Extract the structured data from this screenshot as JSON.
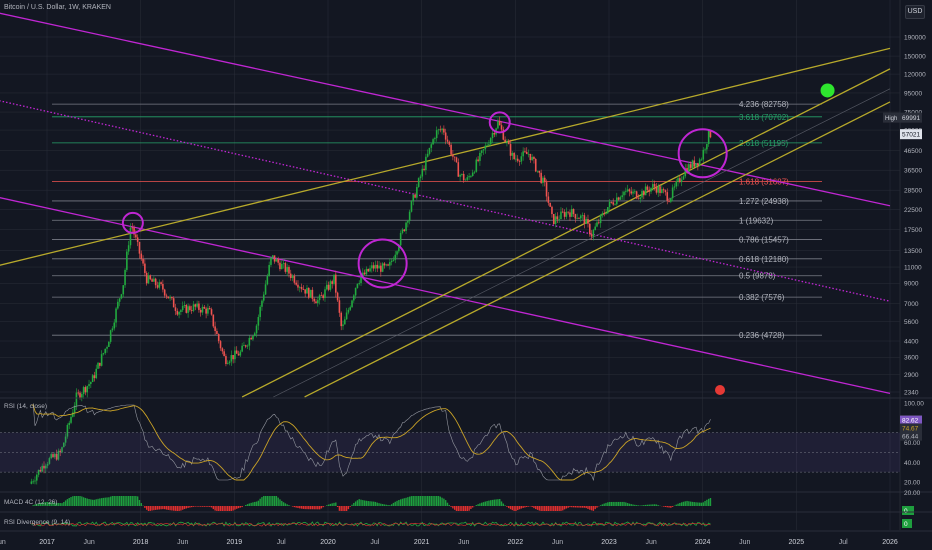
{
  "header": {
    "title": "Bitcoin / U.S. Dollar, 1W, KRAKEN",
    "currency_button": "USD"
  },
  "colors": {
    "background": "#131722",
    "grid": "#2a2e39",
    "candle_up": "#26a69a",
    "candle_up_bright": "#22ab3f",
    "candle_down": "#ef5350",
    "purple": "#c026d3",
    "olive": "#b7a92b",
    "fib_white": "#787b86",
    "fib_green": "#26a269",
    "fib_red": "#ef5350",
    "rsi_line": "#9598a1",
    "rsi_ma": "#c9a227",
    "macd_up": "#1e9e3e",
    "macd_down": "#e02f2f",
    "marker_green": "#2ee62e"
  },
  "price_axis_labels": [
    "190000",
    "150000",
    "120000",
    "95000",
    "75000",
    "60000",
    "46500",
    "36500",
    "28500",
    "22500",
    "17500",
    "13500",
    "11000",
    "9000",
    "7000",
    "5600",
    "4400",
    "3600",
    "2900",
    "2340"
  ],
  "price_badges": {
    "high_label": "High",
    "high_value": "69991",
    "last_value": "57021"
  },
  "fib_labels": [
    "4.236 (82758)",
    "3.618 (70702)",
    "2.618 (51195)",
    "1.618 (31687)",
    "1.272 (24938)",
    "1 (19632)",
    "0.786 (15457)",
    "0.618 (12180)",
    "0.5 (9878)",
    "0.382 (7576)",
    "0.236 (4728)"
  ],
  "time_axis_labels": [
    "Jun",
    "2017",
    "Jun",
    "2018",
    "Jun",
    "2019",
    "Jul",
    "2020",
    "Jul",
    "2021",
    "Jun",
    "2022",
    "Jun",
    "2023",
    "Jun",
    "2024",
    "Jun",
    "2025",
    "Jul",
    "2026"
  ],
  "rsi_panel": {
    "title": "RSI (14, close)",
    "axis_labels": [
      "100.00",
      "80.00",
      "60.00",
      "40.00",
      "20.00"
    ],
    "badge_values": [
      "83.20",
      "82.62",
      "74.67",
      "66.44"
    ]
  },
  "macd_panel": {
    "title": "MACD 4C (12, 26)",
    "badge_value": "0"
  },
  "rsi_div_panel": {
    "title": "RSI Divergence (9, 14)",
    "badge_value": "0"
  },
  "chart_data": {
    "type": "candlestick",
    "title": "Bitcoin / U.S. Dollar, 1W, KRAKEN",
    "y_scale": "log",
    "ylim": [
      2340,
      190000
    ],
    "x_range": [
      "2016-06",
      "2026-01"
    ],
    "price_path": [
      {
        "date": "2016-11",
        "price": 750
      },
      {
        "date": "2017-01",
        "price": 980
      },
      {
        "date": "2017-03",
        "price": 1100
      },
      {
        "date": "2017-05",
        "price": 2200
      },
      {
        "date": "2017-07",
        "price": 2700
      },
      {
        "date": "2017-09",
        "price": 4300
      },
      {
        "date": "2017-11",
        "price": 9000
      },
      {
        "date": "2017-12",
        "price": 19000
      },
      {
        "date": "2018-02",
        "price": 9500
      },
      {
        "date": "2018-04",
        "price": 8500
      },
      {
        "date": "2018-06",
        "price": 6400
      },
      {
        "date": "2018-08",
        "price": 6700
      },
      {
        "date": "2018-10",
        "price": 6400
      },
      {
        "date": "2018-12",
        "price": 3500
      },
      {
        "date": "2019-02",
        "price": 3800
      },
      {
        "date": "2019-04",
        "price": 5200
      },
      {
        "date": "2019-06",
        "price": 12500
      },
      {
        "date": "2019-08",
        "price": 10500
      },
      {
        "date": "2019-10",
        "price": 8500
      },
      {
        "date": "2019-12",
        "price": 7200
      },
      {
        "date": "2020-02",
        "price": 9500
      },
      {
        "date": "2020-03",
        "price": 5000
      },
      {
        "date": "2020-05",
        "price": 9300
      },
      {
        "date": "2020-07",
        "price": 11000
      },
      {
        "date": "2020-09",
        "price": 10800
      },
      {
        "date": "2020-11",
        "price": 18000
      },
      {
        "date": "2021-01",
        "price": 33000
      },
      {
        "date": "2021-03",
        "price": 58000
      },
      {
        "date": "2021-04",
        "price": 61000
      },
      {
        "date": "2021-06",
        "price": 35000
      },
      {
        "date": "2021-07",
        "price": 32000
      },
      {
        "date": "2021-09",
        "price": 45000
      },
      {
        "date": "2021-11",
        "price": 66000
      },
      {
        "date": "2022-01",
        "price": 42000
      },
      {
        "date": "2022-03",
        "price": 45000
      },
      {
        "date": "2022-05",
        "price": 30000
      },
      {
        "date": "2022-06",
        "price": 19500
      },
      {
        "date": "2022-08",
        "price": 22000
      },
      {
        "date": "2022-10",
        "price": 20000
      },
      {
        "date": "2022-11",
        "price": 16500
      },
      {
        "date": "2023-01",
        "price": 23000
      },
      {
        "date": "2023-03",
        "price": 28000
      },
      {
        "date": "2023-05",
        "price": 27000
      },
      {
        "date": "2023-07",
        "price": 30000
      },
      {
        "date": "2023-09",
        "price": 26000
      },
      {
        "date": "2023-11",
        "price": 37000
      },
      {
        "date": "2024-01",
        "price": 42000
      },
      {
        "date": "2024-02",
        "price": 57021
      }
    ],
    "fib_levels": [
      {
        "ratio": 4.236,
        "price": 82758,
        "color": "white"
      },
      {
        "ratio": 3.618,
        "price": 70702,
        "color": "green"
      },
      {
        "ratio": 2.618,
        "price": 51195,
        "color": "green"
      },
      {
        "ratio": 1.618,
        "price": 31687,
        "color": "red"
      },
      {
        "ratio": 1.272,
        "price": 24938,
        "color": "white"
      },
      {
        "ratio": 1,
        "price": 19632,
        "color": "white"
      },
      {
        "ratio": 0.786,
        "price": 15457,
        "color": "white"
      },
      {
        "ratio": 0.618,
        "price": 12180,
        "color": "white"
      },
      {
        "ratio": 0.5,
        "price": 9878,
        "color": "white"
      },
      {
        "ratio": 0.382,
        "price": 7576,
        "color": "white"
      },
      {
        "ratio": 0.236,
        "price": 4728,
        "color": "white"
      }
    ],
    "trendlines": [
      {
        "color": "purple",
        "style": "solid",
        "from": {
          "date": "2016-06",
          "price": 260000
        },
        "to": {
          "date": "2026-01",
          "price": 23500
        }
      },
      {
        "color": "purple",
        "style": "dotted",
        "from": {
          "date": "2016-06",
          "price": 88000
        },
        "to": {
          "date": "2026-01",
          "price": 7200
        }
      },
      {
        "color": "purple",
        "style": "solid",
        "from": {
          "date": "2016-06",
          "price": 26500
        },
        "to": {
          "date": "2026-01",
          "price": 2300
        }
      },
      {
        "color": "olive",
        "style": "solid",
        "from": {
          "date": "2016-06",
          "price": 11000
        },
        "to": {
          "date": "2026-01",
          "price": 165000
        }
      },
      {
        "color": "olive",
        "style": "solid",
        "from": {
          "date": "2019-02",
          "price": 2200
        },
        "to": {
          "date": "2026-01",
          "price": 128000
        }
      },
      {
        "color": "olive",
        "style": "solid",
        "from": {
          "date": "2019-10",
          "price": 2200
        },
        "to": {
          "date": "2026-01",
          "price": 85000
        }
      },
      {
        "color": "gray",
        "style": "thin",
        "from": {
          "date": "2019-06",
          "price": 2200
        },
        "to": {
          "date": "2026-01",
          "price": 100000
        }
      }
    ],
    "highlight_circles": [
      {
        "date": "2017-12",
        "price": 19000
      },
      {
        "date": "2020-08",
        "price": 11500
      },
      {
        "date": "2021-11",
        "price": 66000
      },
      {
        "date": "2024-01",
        "price": 45000
      }
    ],
    "target_marker": {
      "date": "2025-05",
      "price": 98000
    },
    "last_price": 57021,
    "high_price": 69991
  }
}
